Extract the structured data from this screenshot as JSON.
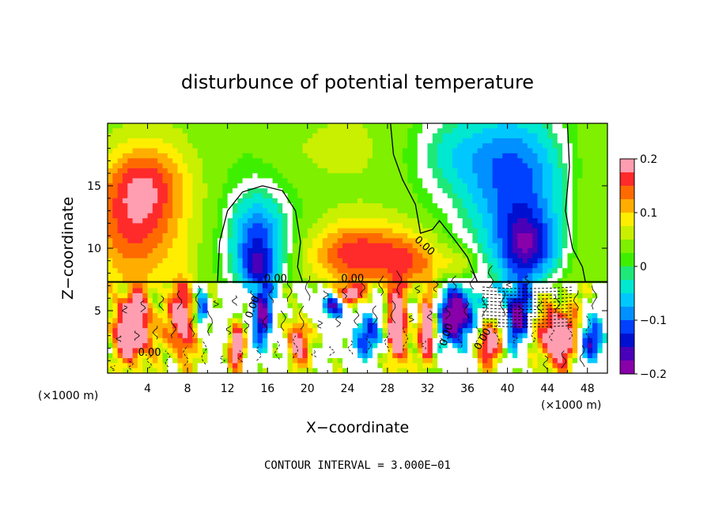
{
  "chart_data": {
    "type": "heatmap",
    "title": "disturbunce of potential temperature",
    "xlabel": "X−coordinate",
    "ylabel": "Z−coordinate",
    "x_unit": "(×1000 m)",
    "x_unit_right": "(×1000 m)",
    "xlim": [
      0,
      50
    ],
    "ylim": [
      0,
      20
    ],
    "x_ticks": [
      4,
      8,
      12,
      16,
      20,
      24,
      28,
      32,
      36,
      40,
      44,
      48
    ],
    "y_ticks": [
      5,
      10,
      15
    ],
    "colorbar": {
      "range": [
        -0.2,
        0.2
      ],
      "tick_values": [
        0.2,
        0.1,
        0,
        -0.1,
        -0.2
      ],
      "tick_labels": [
        "0.2",
        "0.1",
        "0",
        "−0.1",
        "−0.2"
      ],
      "colors": [
        "#ff9eb0",
        "#ff2a2a",
        "#ff6a00",
        "#ffae00",
        "#ffee00",
        "#c8f000",
        "#7ef000",
        "#3ef000",
        "#1ee878",
        "#00e8d0",
        "#00c8ff",
        "#0090ff",
        "#0040ff",
        "#0010d0",
        "#4a00b8",
        "#8800aa"
      ]
    },
    "contour_labels": [
      "0.00",
      "0.00",
      "0.00",
      "0.00",
      "0.00",
      "0.00",
      "0.00"
    ],
    "footer": "CONTOUR INTERVAL = 3.000E−01",
    "blobs": [
      {
        "cx": 2.5,
        "cz": 12.0,
        "rx": 5.0,
        "rz": 5.0,
        "v": 0.12
      },
      {
        "cx": 4.0,
        "cz": 15.5,
        "rx": 4.0,
        "rz": 3.0,
        "v": 0.07
      },
      {
        "cx": 15.0,
        "cz": 10.5,
        "rx": 2.8,
        "rz": 3.6,
        "v": -0.14
      },
      {
        "cx": 15.0,
        "cz": 8.5,
        "rx": 1.5,
        "rz": 1.5,
        "v": -0.08
      },
      {
        "cx": 25.0,
        "cz": 9.5,
        "rx": 5.0,
        "rz": 2.6,
        "v": 0.13
      },
      {
        "cx": 30.5,
        "cz": 9.0,
        "rx": 3.0,
        "rz": 2.2,
        "v": 0.08
      },
      {
        "cx": 35.0,
        "cz": 8.5,
        "rx": 2.0,
        "rz": 1.5,
        "v": 0.06
      },
      {
        "cx": 41.0,
        "cz": 15.5,
        "rx": 5.0,
        "rz": 5.5,
        "v": -0.14
      },
      {
        "cx": 42.0,
        "cz": 10.0,
        "rx": 3.0,
        "rz": 2.8,
        "v": -0.16
      },
      {
        "cx": 34.5,
        "cz": 17.5,
        "rx": 4.0,
        "rz": 3.0,
        "v": -0.05
      },
      {
        "cx": 21.0,
        "cz": 18.0,
        "rx": 6.0,
        "rz": 3.0,
        "v": 0.025
      },
      {
        "cx": 48.5,
        "cz": 14.0,
        "rx": 2.5,
        "rz": 6.0,
        "v": 0.02
      },
      {
        "cx": 2.5,
        "cz": 3.5,
        "rx": 2.0,
        "rz": 2.5,
        "v": 0.25
      },
      {
        "cx": 7.5,
        "cz": 4.0,
        "rx": 1.2,
        "rz": 3.0,
        "v": 0.2
      },
      {
        "cx": 9.5,
        "cz": 5.0,
        "rx": 0.6,
        "rz": 1.5,
        "v": -0.2
      },
      {
        "cx": 13.0,
        "cz": 2.0,
        "rx": 0.8,
        "rz": 2.0,
        "v": 0.18
      },
      {
        "cx": 15.5,
        "cz": 4.5,
        "rx": 1.0,
        "rz": 2.5,
        "v": -0.18
      },
      {
        "cx": 19.0,
        "cz": 2.5,
        "rx": 1.0,
        "rz": 2.0,
        "v": 0.2
      },
      {
        "cx": 22.5,
        "cz": 5.5,
        "rx": 1.5,
        "rz": 1.0,
        "v": -0.2
      },
      {
        "cx": 24.0,
        "cz": 6.2,
        "rx": 1.2,
        "rz": 0.8,
        "v": 0.22
      },
      {
        "cx": 26.0,
        "cz": 3.0,
        "rx": 2.0,
        "rz": 2.0,
        "v": -0.15
      },
      {
        "cx": 29.0,
        "cz": 3.5,
        "rx": 1.0,
        "rz": 3.0,
        "v": 0.25
      },
      {
        "cx": 32.0,
        "cz": 3.5,
        "rx": 0.8,
        "rz": 3.0,
        "v": 0.22
      },
      {
        "cx": 35.0,
        "cz": 4.5,
        "rx": 2.0,
        "rz": 2.5,
        "v": -0.25
      },
      {
        "cx": 38.0,
        "cz": 2.5,
        "rx": 1.5,
        "rz": 2.0,
        "v": 0.2
      },
      {
        "cx": 41.0,
        "cz": 4.5,
        "rx": 1.5,
        "rz": 2.5,
        "v": -0.2
      },
      {
        "cx": 45.0,
        "cz": 3.0,
        "rx": 2.0,
        "rz": 2.5,
        "v": 0.22
      },
      {
        "cx": 48.5,
        "cz": 2.5,
        "rx": 1.5,
        "rz": 2.0,
        "v": -0.18
      }
    ]
  }
}
